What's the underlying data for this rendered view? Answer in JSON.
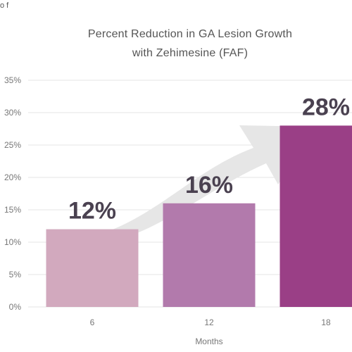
{
  "corner_text": "o f",
  "chart_data": {
    "type": "bar",
    "title_lines": [
      "Percent Reduction in GA Lesion Growth",
      "with Zehimesine (FAF)"
    ],
    "xlabel": "Months",
    "ylabel": "",
    "categories": [
      "6",
      "12",
      "18"
    ],
    "values": [
      12,
      16,
      28
    ],
    "data_labels": [
      "12%",
      "16%",
      "28%"
    ],
    "ylim": [
      0,
      35
    ],
    "yticks": [
      0,
      5,
      10,
      15,
      20,
      25,
      30,
      35
    ],
    "ytick_labels": [
      "0%",
      "5%",
      "10%",
      "15%",
      "20%",
      "25%",
      "30%",
      "35%"
    ],
    "grid": true,
    "bar_colors": [
      "#d2a9be",
      "#b27aac",
      "#9a3f86"
    ],
    "arrow_color": "#e6e6e6",
    "gridline_color": "#e4e4e4"
  }
}
